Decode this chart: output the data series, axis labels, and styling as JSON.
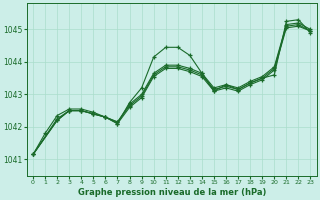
{
  "title": "Graphe pression niveau de la mer (hPa)",
  "background_color": "#cceee8",
  "grid_color": "#aaddcc",
  "line_color": "#1a6b2a",
  "xlim": [
    -0.5,
    23.5
  ],
  "ylim": [
    1040.5,
    1045.8
  ],
  "yticks": [
    1041,
    1042,
    1043,
    1044,
    1045
  ],
  "xticks": [
    0,
    1,
    2,
    3,
    4,
    5,
    6,
    7,
    8,
    9,
    10,
    11,
    12,
    13,
    14,
    15,
    16,
    17,
    18,
    19,
    20,
    21,
    22,
    23
  ],
  "series": [
    {
      "x": [
        0,
        1,
        2,
        3,
        4,
        5,
        6,
        7,
        8,
        9,
        10,
        11,
        12,
        13,
        14,
        15,
        16,
        17,
        18,
        19,
        20,
        21,
        22,
        23
      ],
      "y": [
        1041.15,
        1041.8,
        1042.35,
        1042.55,
        1042.55,
        1042.45,
        1042.3,
        1042.1,
        1042.75,
        1043.2,
        1044.15,
        1044.45,
        1044.45,
        1044.2,
        1043.65,
        1043.1,
        1043.3,
        1043.15,
        1043.35,
        1043.5,
        1043.6,
        1045.25,
        1045.3,
        1044.9
      ]
    },
    {
      "x": [
        0,
        2,
        3,
        4,
        5,
        6,
        7,
        8,
        9,
        10,
        11,
        12,
        13,
        14,
        15,
        16,
        17,
        18,
        19,
        20,
        21,
        22,
        23
      ],
      "y": [
        1041.15,
        1042.25,
        1042.5,
        1042.5,
        1042.4,
        1042.3,
        1042.1,
        1042.6,
        1042.9,
        1043.55,
        1043.8,
        1043.8,
        1043.7,
        1043.55,
        1043.1,
        1043.2,
        1043.1,
        1043.3,
        1043.45,
        1043.75,
        1045.05,
        1045.1,
        1044.95
      ]
    },
    {
      "x": [
        0,
        2,
        3,
        4,
        5,
        6,
        7,
        8,
        9,
        10,
        11,
        12,
        13,
        14,
        15,
        16,
        17,
        18,
        19,
        20,
        21,
        22,
        23
      ],
      "y": [
        1041.15,
        1042.2,
        1042.5,
        1042.5,
        1042.4,
        1042.3,
        1042.15,
        1042.65,
        1042.95,
        1043.6,
        1043.85,
        1043.85,
        1043.75,
        1043.6,
        1043.15,
        1043.25,
        1043.15,
        1043.35,
        1043.5,
        1043.8,
        1045.1,
        1045.15,
        1044.95
      ]
    },
    {
      "x": [
        0,
        2,
        3,
        4,
        5,
        6,
        7,
        8,
        9,
        10,
        11,
        12,
        13,
        14,
        15,
        16,
        17,
        18,
        19,
        20,
        21,
        22,
        23
      ],
      "y": [
        1041.15,
        1042.2,
        1042.5,
        1042.5,
        1042.4,
        1042.3,
        1042.15,
        1042.7,
        1043.0,
        1043.65,
        1043.9,
        1043.9,
        1043.8,
        1043.65,
        1043.2,
        1043.3,
        1043.2,
        1043.4,
        1043.55,
        1043.85,
        1045.15,
        1045.2,
        1045.0
      ]
    }
  ]
}
